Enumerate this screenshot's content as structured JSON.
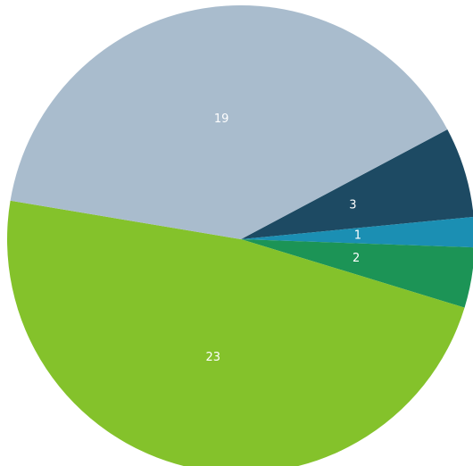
{
  "chart_data": {
    "type": "pie",
    "slices": [
      {
        "value": 3,
        "label": "3",
        "color": "#1d4a63"
      },
      {
        "value": 1,
        "label": "1",
        "color": "#1b8fb3"
      },
      {
        "value": 2,
        "label": "2",
        "color": "#1c9456"
      },
      {
        "value": 23,
        "label": "23",
        "color": "#84c22b"
      },
      {
        "value": 19,
        "label": "19",
        "color": "#a9bccd"
      }
    ],
    "start_angle_deg": -28,
    "direction": "clockwise"
  }
}
